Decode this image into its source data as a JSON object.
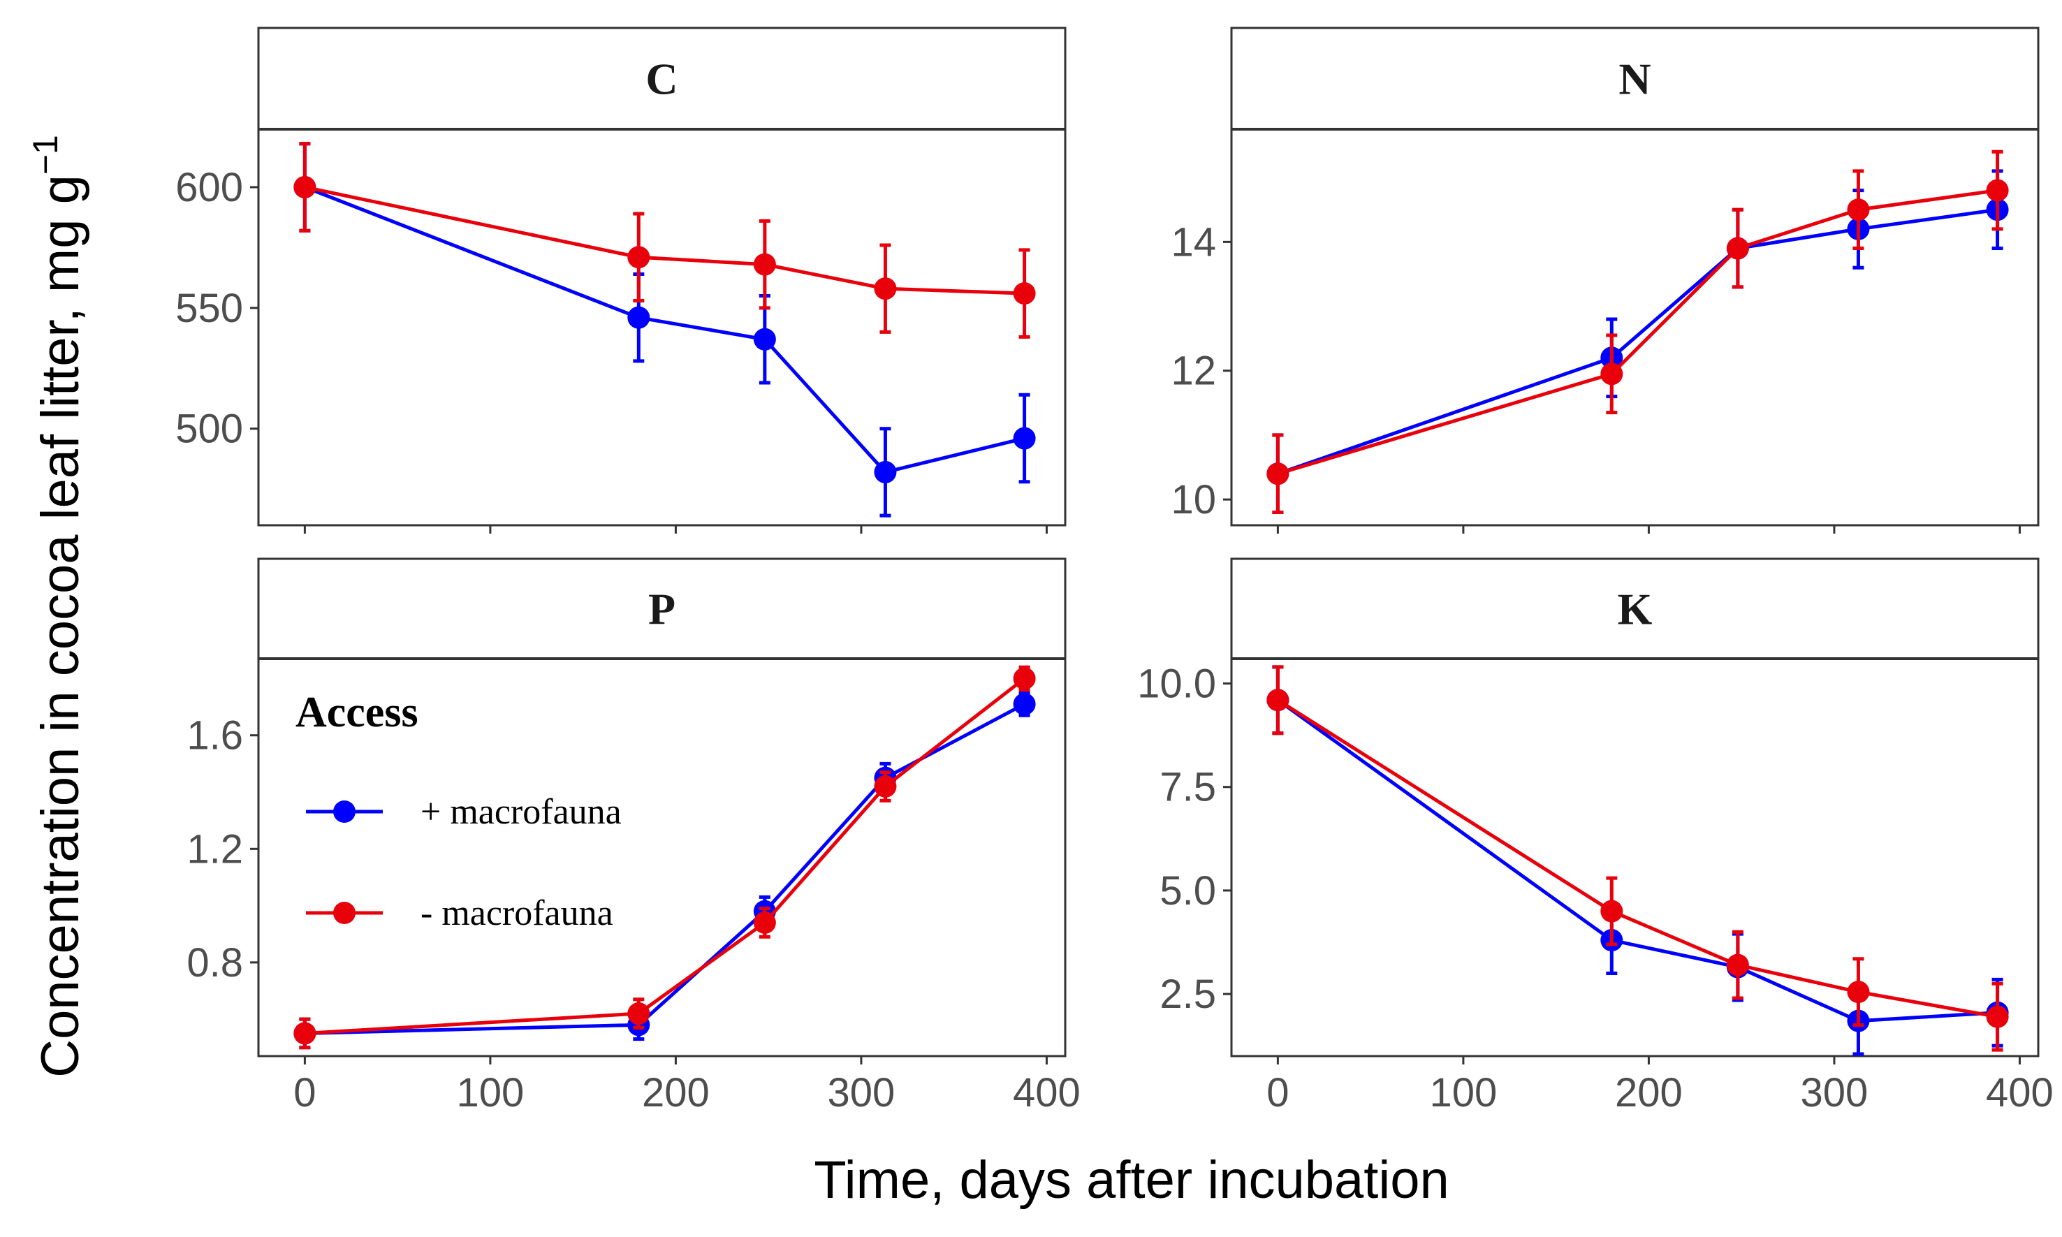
{
  "chart_data": {
    "type": "line",
    "xlabel": "Time, days after incubation",
    "ylabel_main": "Concentration in cocoa leaf litter, mg g",
    "ylabel_sup": "−1",
    "legend": {
      "title": "Access",
      "placement": "inside P panel, top-left",
      "entries": [
        {
          "key": "plus",
          "label": "+ macrofauna",
          "color": "#0000ff"
        },
        {
          "key": "minus",
          "label": "- macrofauna",
          "color": "#e8000b"
        }
      ]
    },
    "x_ticks": [
      0,
      100,
      200,
      300,
      400
    ],
    "xlim": [
      -25,
      410
    ],
    "panels": [
      {
        "name": "C",
        "ylim": [
          460,
          624
        ],
        "y_ticks": [
          500,
          550,
          600
        ],
        "y_tick_labels": [
          "500",
          "550",
          "600"
        ],
        "x": [
          0,
          180,
          248,
          313,
          388
        ],
        "series": [
          {
            "key": "plus",
            "values": [
              600,
              546,
              537,
              482,
              496
            ],
            "err": [
              18,
              18,
              18,
              18,
              18
            ]
          },
          {
            "key": "minus",
            "values": [
              600,
              571,
              568,
              558,
              556
            ],
            "err": [
              18,
              18,
              18,
              18,
              18
            ]
          }
        ]
      },
      {
        "name": "N",
        "ylim": [
          9.6,
          15.75
        ],
        "y_ticks": [
          10,
          12,
          14
        ],
        "y_tick_labels": [
          "10",
          "12",
          "14"
        ],
        "x": [
          0,
          180,
          248,
          313,
          388
        ],
        "series": [
          {
            "key": "plus",
            "values": [
              10.4,
              12.2,
              13.9,
              14.2,
              14.5
            ],
            "err": [
              0.6,
              0.6,
              0.6,
              0.6,
              0.6
            ]
          },
          {
            "key": "minus",
            "values": [
              10.4,
              11.95,
              13.9,
              14.5,
              14.8
            ],
            "err": [
              0.6,
              0.6,
              0.6,
              0.6,
              0.6
            ]
          }
        ]
      },
      {
        "name": "P",
        "ylim": [
          0.47,
          1.87
        ],
        "y_ticks": [
          0.8,
          1.2,
          1.6
        ],
        "y_tick_labels": [
          "0.8",
          "1.2",
          "1.6"
        ],
        "x": [
          0,
          180,
          248,
          313,
          388
        ],
        "series": [
          {
            "key": "plus",
            "values": [
              0.55,
              0.58,
              0.98,
              1.45,
              1.71
            ],
            "err": [
              0.05,
              0.05,
              0.05,
              0.05,
              0.04
            ]
          },
          {
            "key": "minus",
            "values": [
              0.55,
              0.62,
              0.94,
              1.42,
              1.8
            ],
            "err": [
              0.05,
              0.05,
              0.05,
              0.05,
              0.04
            ]
          }
        ]
      },
      {
        "name": "K",
        "ylim": [
          1.0,
          10.6
        ],
        "y_ticks": [
          2.5,
          5.0,
          7.5,
          10.0
        ],
        "y_tick_labels": [
          "2.5",
          "5.0",
          "7.5",
          "10.0"
        ],
        "x": [
          0,
          180,
          248,
          313,
          388
        ],
        "series": [
          {
            "key": "plus",
            "values": [
              9.6,
              3.8,
              3.15,
              1.85,
              2.05
            ],
            "err": [
              0.8,
              0.8,
              0.8,
              0.8,
              0.8
            ]
          },
          {
            "key": "minus",
            "values": [
              9.6,
              4.5,
              3.2,
              2.55,
              1.95
            ],
            "err": [
              0.8,
              0.8,
              0.8,
              0.8,
              0.8
            ]
          }
        ]
      }
    ]
  }
}
